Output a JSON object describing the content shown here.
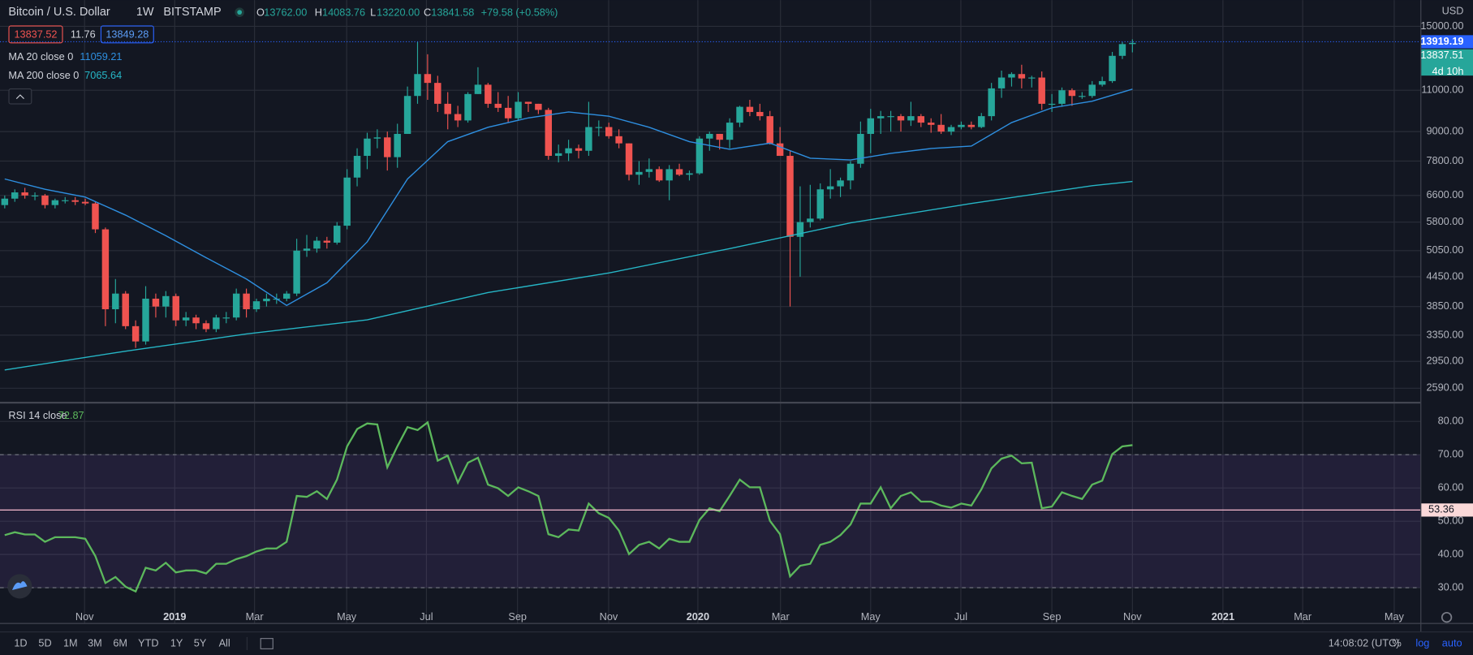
{
  "header": {
    "title": "Bitcoin / U.S. Dollar",
    "interval": "1W",
    "exchange": "BITSTAMP",
    "legend_keys": [
      "O",
      "H",
      "L",
      "C"
    ],
    "legend_values": [
      "13762.00",
      "14083.76",
      "13220.00",
      "13841.58"
    ],
    "change": "+79.58 (+0.58%)",
    "bid": 13837.52,
    "spread": 11.76,
    "ask": 13849.28
  },
  "chart_data": [
    {
      "type": "candlestick",
      "title": "Bitcoin / U.S. Dollar",
      "axis_unit": "USD",
      "log_scale": true,
      "grid": true,
      "up_color": "#26a69a",
      "down_color": "#ef5350",
      "open": [
        6300,
        6500,
        6700,
        6600,
        6600,
        6300,
        6450,
        6450,
        6400,
        6350,
        5600,
        3800,
        4100,
        3500,
        3250,
        4000,
        3850,
        4050,
        3600,
        3650,
        3550,
        3450,
        3650,
        3650,
        4100,
        3800,
        3950,
        4000,
        4000,
        4100,
        5050,
        5100,
        5300,
        5250,
        5700,
        7200,
        8000,
        8700,
        8750,
        7950,
        8900,
        10700,
        11900,
        11400,
        10300,
        9800,
        9500,
        10800,
        11300,
        10300,
        10100,
        9600,
        10400,
        10300,
        10000,
        8000,
        8100,
        8300,
        8200,
        9200,
        9200,
        8800,
        8500,
        7300,
        7400,
        7500,
        7100,
        7500,
        7300,
        7350,
        8700,
        8900,
        8650,
        9400,
        10150,
        9900,
        9700,
        8500,
        8000,
        5400,
        5800,
        5900,
        6800,
        6900,
        7100,
        7700,
        8900,
        9600,
        9700,
        9700,
        9500,
        9700,
        9400,
        9300,
        9000,
        9200,
        9300,
        9200,
        9700,
        11100,
        11700,
        11900,
        11650,
        11700,
        10300,
        10300,
        11000,
        10700,
        10700,
        11300,
        11500,
        13000,
        13762
      ],
      "high": [
        6600,
        6800,
        6850,
        6700,
        6650,
        6500,
        6550,
        6550,
        6500,
        6400,
        5650,
        4400,
        4150,
        3600,
        4250,
        4100,
        4150,
        4100,
        3750,
        3700,
        3600,
        3700,
        3750,
        4200,
        4200,
        4000,
        4100,
        4100,
        4150,
        5350,
        5450,
        5400,
        5400,
        5800,
        7500,
        8300,
        8950,
        9100,
        9000,
        9350,
        11200,
        13900,
        13100,
        11800,
        10900,
        10200,
        10900,
        12300,
        11400,
        10900,
        10700,
        10900,
        10400,
        10300,
        10100,
        8450,
        8650,
        8450,
        10400,
        9500,
        9400,
        9100,
        8500,
        7800,
        7900,
        7600,
        7650,
        7700,
        7450,
        8800,
        9000,
        8900,
        9600,
        10200,
        10500,
        10300,
        9950,
        9200,
        8200,
        6900,
        6950,
        7000,
        7500,
        7200,
        7800,
        9450,
        10050,
        9950,
        9950,
        9800,
        10400,
        9800,
        9600,
        9800,
        9300,
        9450,
        9450,
        9850,
        11400,
        12100,
        12000,
        12450,
        11800,
        12050,
        10800,
        11150,
        11100,
        10900,
        11500,
        11750,
        13250,
        13900,
        14083.76
      ],
      "low": [
        6200,
        6400,
        6500,
        6450,
        6200,
        6200,
        6350,
        6300,
        6300,
        5500,
        3500,
        3550,
        3450,
        3150,
        3200,
        3650,
        3650,
        3500,
        3500,
        3450,
        3400,
        3400,
        3550,
        3600,
        3650,
        3750,
        3850,
        3900,
        3950,
        4050,
        4900,
        5000,
        5100,
        5200,
        5600,
        6900,
        7500,
        8300,
        7450,
        7550,
        8900,
        10300,
        10500,
        9900,
        9100,
        9200,
        9400,
        10800,
        10100,
        9900,
        9400,
        9500,
        9900,
        9800,
        7850,
        7750,
        7800,
        7900,
        8000,
        8800,
        8700,
        8300,
        7100,
        6950,
        7200,
        7050,
        6450,
        7250,
        7100,
        7300,
        8200,
        8250,
        8300,
        9200,
        9700,
        9500,
        8450,
        8000,
        3850,
        4450,
        5650,
        5850,
        6500,
        6550,
        6800,
        7550,
        8100,
        8900,
        9000,
        9000,
        9250,
        9200,
        8950,
        8900,
        8850,
        9100,
        9100,
        9150,
        9500,
        10600,
        11200,
        11100,
        11150,
        10000,
        9900,
        10150,
        10200,
        10550,
        10600,
        11200,
        11400,
        12800,
        13220
      ],
      "close": [
        6500,
        6700,
        6600,
        6600,
        6300,
        6450,
        6450,
        6400,
        6350,
        5600,
        3800,
        4100,
        3500,
        3250,
        4000,
        3850,
        4050,
        3600,
        3650,
        3550,
        3450,
        3650,
        3650,
        4100,
        3800,
        3950,
        4000,
        4000,
        4100,
        5050,
        5100,
        5300,
        5250,
        5700,
        7200,
        8000,
        8700,
        8750,
        7950,
        8900,
        10700,
        11900,
        11400,
        10300,
        9800,
        9500,
        10800,
        11300,
        10300,
        10100,
        9600,
        10400,
        10300,
        10000,
        8000,
        8100,
        8300,
        8200,
        9200,
        9200,
        8800,
        8500,
        7300,
        7400,
        7500,
        7100,
        7500,
        7300,
        7350,
        8700,
        8900,
        8650,
        9400,
        10150,
        9900,
        9700,
        8500,
        8000,
        5400,
        5800,
        5900,
        6800,
        6900,
        7100,
        7700,
        8900,
        9600,
        9700,
        9700,
        9500,
        9700,
        9400,
        9300,
        9000,
        9200,
        9300,
        9200,
        9700,
        11100,
        11700,
        11900,
        11650,
        11700,
        10300,
        10300,
        11000,
        10700,
        10700,
        11300,
        11500,
        13000,
        13762,
        13841.58
      ],
      "overlays": [
        {
          "name": "MA 20 close 0",
          "color": "#2e8fe0",
          "x": [
            0,
            4,
            8,
            12,
            16,
            20,
            24,
            28,
            32,
            36,
            40,
            44,
            48,
            52,
            56,
            60,
            64,
            68,
            72,
            76,
            80,
            84,
            88,
            92,
            96,
            100,
            104,
            108,
            112
          ],
          "values": [
            7150,
            6800,
            6550,
            6000,
            5430,
            4880,
            4400,
            3870,
            4320,
            5270,
            7150,
            8570,
            9190,
            9620,
            9900,
            9700,
            9190,
            8570,
            8260,
            8510,
            7910,
            7840,
            8100,
            8290,
            8390,
            9400,
            10100,
            10430,
            11059.21
          ]
        },
        {
          "name": "MA 200 close 0",
          "color": "#26b6c6",
          "x": [
            0,
            12,
            24,
            36,
            48,
            60,
            72,
            84,
            96,
            108,
            112
          ],
          "values": [
            2830,
            3100,
            3370,
            3610,
            4120,
            4530,
            5100,
            5780,
            6350,
            6920,
            7065.64
          ]
        }
      ],
      "price_line": 13919.19,
      "price_line_color": "#2962ff",
      "last_price": 13837.51,
      "countdown": "4d 10h",
      "xlim": [
        -0.47,
        140.6
      ],
      "xticks": [
        {
          "value": 7.93,
          "label": "Nov"
        },
        {
          "value": 16.88,
          "label": "2019"
        },
        {
          "value": 24.81,
          "label": "Mar"
        },
        {
          "value": 33.96,
          "label": "May"
        },
        {
          "value": 41.88,
          "label": "Jul"
        },
        {
          "value": 50.93,
          "label": "Sep"
        },
        {
          "value": 59.98,
          "label": "Nov"
        },
        {
          "value": 68.84,
          "label": "2020"
        },
        {
          "value": 77.05,
          "label": "Mar"
        },
        {
          "value": 86.0,
          "label": "May"
        },
        {
          "value": 94.96,
          "label": "Jul"
        },
        {
          "value": 104.0,
          "label": "Sep"
        },
        {
          "value": 112.0,
          "label": "Nov"
        },
        {
          "value": 120.99,
          "label": "2021"
        },
        {
          "value": 128.91,
          "label": "Mar"
        },
        {
          "value": 138.0,
          "label": "May"
        }
      ],
      "ylim": [
        2420,
        17040
      ],
      "yticks": [
        {
          "value": 2590,
          "label": "2590.00"
        },
        {
          "value": 2950,
          "label": "2950.00"
        },
        {
          "value": 3350,
          "label": "3350.00"
        },
        {
          "value": 3850,
          "label": "3850.00"
        },
        {
          "value": 4450,
          "label": "4450.00"
        },
        {
          "value": 5050,
          "label": "5050.00"
        },
        {
          "value": 5800,
          "label": "5800.00"
        },
        {
          "value": 6600,
          "label": "6600.00"
        },
        {
          "value": 7800,
          "label": "7800.00"
        },
        {
          "value": 9000,
          "label": "9000.00"
        },
        {
          "value": 11000,
          "label": "11000.00"
        },
        {
          "value": 15000,
          "label": "15000.00"
        }
      ]
    },
    {
      "type": "line",
      "name": "RSI 14 close",
      "color": "#5cb85c",
      "grid": true,
      "values": [
        45.8,
        46.7,
        46,
        46,
        43.8,
        45.2,
        45.2,
        45.2,
        44.7,
        39.5,
        31.4,
        33.2,
        30.3,
        28.9,
        36,
        35.2,
        37.5,
        34.6,
        35.2,
        35.2,
        34.3,
        37.2,
        37.2,
        38.6,
        39.5,
        40.9,
        41.8,
        41.8,
        43.8,
        57.6,
        57.3,
        59,
        56.7,
        62.5,
        72.5,
        77.7,
        79.4,
        79.1,
        66.2,
        72.5,
        78.3,
        77.4,
        79.7,
        68.2,
        69.7,
        61.6,
        67.6,
        69.1,
        61,
        59.9,
        57.6,
        60.2,
        59,
        57.6,
        46.1,
        45.2,
        47.5,
        47.2,
        55.3,
        52.4,
        51,
        47.2,
        40.1,
        42.9,
        43.8,
        41.8,
        44.7,
        43.8,
        43.8,
        50.4,
        53.9,
        53,
        57.6,
        62.5,
        60.2,
        60.2,
        50.1,
        46.1,
        33.4,
        36.6,
        37.2,
        42.9,
        43.8,
        45.8,
        49,
        55.3,
        55.3,
        60.2,
        53.9,
        57.6,
        58.7,
        55.9,
        55.9,
        54.7,
        54.1,
        55.3,
        54.7,
        59.6,
        65.9,
        68.8,
        69.7,
        67.4,
        67.6,
        53.9,
        54.4,
        58.7,
        57.6,
        56.7,
        61,
        62.2,
        70.2,
        72.5,
        72.87
      ],
      "band_upper": 70,
      "band_lower": 30,
      "band_color": "#7e57c2",
      "level_line": 53.36,
      "ylim": [
        19.4,
        85.5
      ],
      "yticks": [
        {
          "value": 30,
          "label": "30.00"
        },
        {
          "value": 40,
          "label": "40.00"
        },
        {
          "value": 50,
          "label": "50.00"
        },
        {
          "value": 60,
          "label": "60.00"
        },
        {
          "value": 70,
          "label": "70.00"
        },
        {
          "value": 80,
          "label": "80.00"
        }
      ]
    }
  ],
  "toolbar": {
    "ranges": [
      "1D",
      "5D",
      "1M",
      "3M",
      "6M",
      "YTD",
      "1Y",
      "5Y",
      "All"
    ],
    "clock": "14:08:02 (UTC)",
    "percent": "%",
    "log": "log",
    "auto": "auto"
  }
}
